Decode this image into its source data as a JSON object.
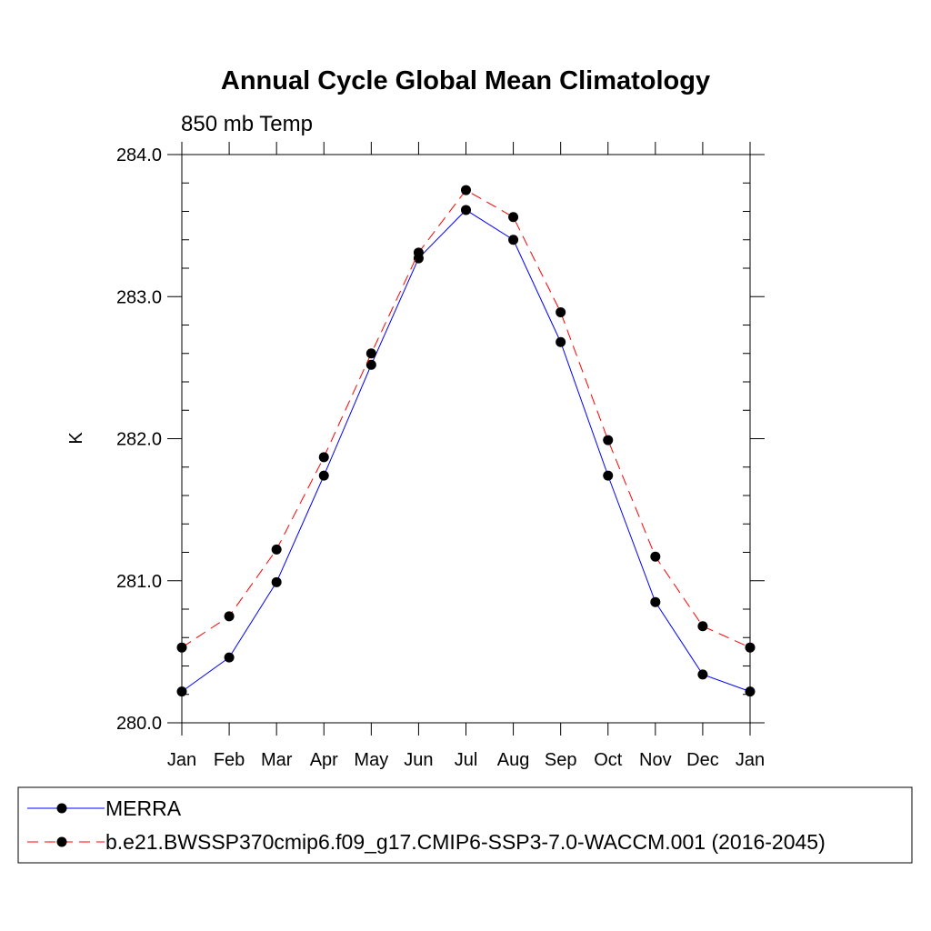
{
  "chart_data": {
    "type": "line",
    "title": "Annual Cycle Global Mean Climatology",
    "subtitle": "850 mb Temp",
    "xlabel": "",
    "ylabel": "K",
    "categories": [
      "Jan",
      "Feb",
      "Mar",
      "Apr",
      "May",
      "Jun",
      "Jul",
      "Aug",
      "Sep",
      "Oct",
      "Nov",
      "Dec",
      "Jan"
    ],
    "ylim": [
      280.0,
      284.0
    ],
    "yticks": [
      "280.0",
      "281.0",
      "282.0",
      "283.0",
      "284.0"
    ],
    "grid": false,
    "legend_position": "bottom",
    "series": [
      {
        "name": "MERRA",
        "color": "#0000ff",
        "line_style": "solid",
        "marker": "filled-circle",
        "values": [
          280.22,
          280.46,
          280.99,
          281.74,
          282.52,
          283.27,
          283.61,
          283.4,
          282.68,
          281.74,
          280.85,
          280.34,
          280.22
        ]
      },
      {
        "name": "b.e21.BWSSP370cmip6.f09_g17.CMIP6-SSP3-7.0-WACCM.001 (2016-2045)",
        "color": "#ff0000",
        "line_style": "dashed",
        "marker": "filled-circle",
        "values": [
          280.53,
          280.75,
          281.22,
          281.87,
          282.6,
          283.31,
          283.75,
          283.56,
          282.89,
          281.99,
          281.17,
          280.68,
          280.53
        ]
      }
    ]
  }
}
